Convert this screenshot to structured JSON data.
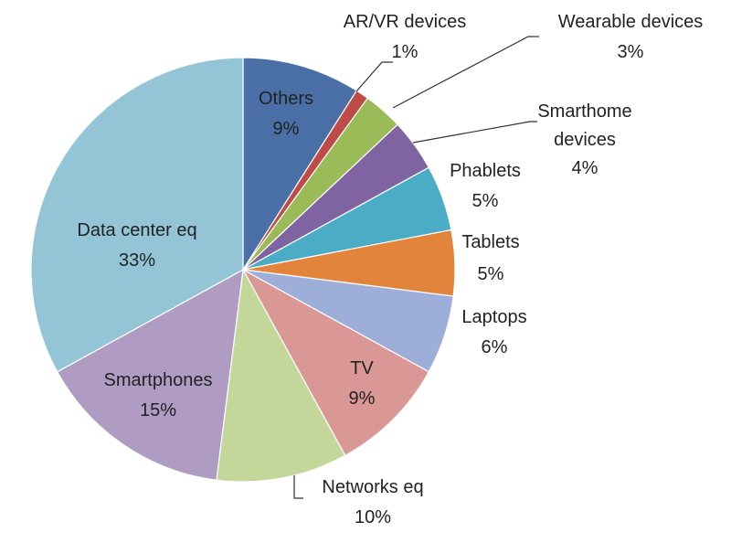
{
  "chart_data": {
    "type": "pie",
    "title": "",
    "slices": [
      {
        "label": "Others",
        "value": 9,
        "value_label": "9%",
        "color": "#4a6fa6"
      },
      {
        "label": "AR/VR devices",
        "value": 1,
        "value_label": "1%",
        "color": "#be4b48"
      },
      {
        "label": "Wearable devices",
        "value": 3,
        "value_label": "3%",
        "color": "#9bbb59"
      },
      {
        "label": "Smarthome devices",
        "value": 4,
        "value_label": "4%",
        "color": "#7f64a1"
      },
      {
        "label": "Phablets",
        "value": 5,
        "value_label": "5%",
        "color": "#4bacc6"
      },
      {
        "label": "Tablets",
        "value": 5,
        "value_label": "5%",
        "color": "#e3843c"
      },
      {
        "label": "Laptops",
        "value": 6,
        "value_label": "6%",
        "color": "#9dafd8"
      },
      {
        "label": "TV",
        "value": 9,
        "value_label": "9%",
        "color": "#d99795"
      },
      {
        "label": "Networks eq",
        "value": 10,
        "value_label": "10%",
        "color": "#c4d79b"
      },
      {
        "label": "Smartphones",
        "value": 15,
        "value_label": "15%",
        "color": "#b09cc3"
      },
      {
        "label": "Data center eq",
        "value": 33,
        "value_label": "33%",
        "color": "#93c5d6"
      }
    ]
  }
}
